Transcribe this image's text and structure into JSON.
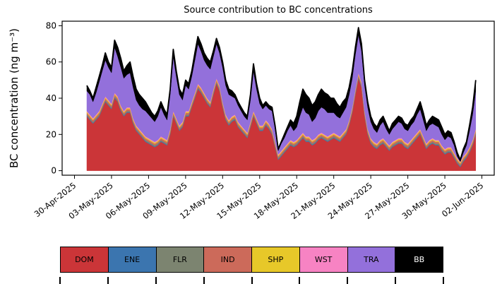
{
  "chart_data": {
    "type": "area",
    "stacked": true,
    "title": "Source contribution to BC concentrations",
    "ylabel": "BC concentration (ng m⁻³)",
    "xlabel": "",
    "ylim": [
      0,
      80
    ],
    "yticks": [
      0,
      20,
      40,
      60,
      80
    ],
    "grid": false,
    "x_axis": {
      "unit": "days since 30-Apr-2025",
      "domain": [
        -1,
        34
      ],
      "ticks": [
        {
          "offset": 0,
          "label": "30-Apr-2025"
        },
        {
          "offset": 3,
          "label": "03-May-2025"
        },
        {
          "offset": 6,
          "label": "06-May-2025"
        },
        {
          "offset": 9,
          "label": "09-May-2025"
        },
        {
          "offset": 12,
          "label": "12-May-2025"
        },
        {
          "offset": 15,
          "label": "15-May-2025"
        },
        {
          "offset": 18,
          "label": "18-May-2025"
        },
        {
          "offset": 21,
          "label": "21-May-2025"
        },
        {
          "offset": 24,
          "label": "24-May-2025"
        },
        {
          "offset": 27,
          "label": "27-May-2025"
        },
        {
          "offset": 30,
          "label": "30-May-2025"
        },
        {
          "offset": 33,
          "label": "02-Jun-2025"
        }
      ]
    },
    "x_start": 1.0,
    "x_step": 0.25,
    "n_points": 127,
    "series": [
      {
        "name": "DOM",
        "color": "#cb3538",
        "values": [
          30,
          28,
          26,
          28,
          30,
          34,
          38,
          36,
          34,
          40,
          38,
          33,
          30,
          32,
          32,
          26,
          22,
          20,
          18,
          16,
          15,
          14,
          13,
          14,
          16,
          15,
          14,
          20,
          30,
          26,
          22,
          24,
          30,
          30,
          35,
          40,
          45,
          43,
          40,
          37,
          35,
          42,
          48,
          44,
          35,
          28,
          25,
          27,
          28,
          24,
          22,
          20,
          18,
          24,
          30,
          26,
          22,
          22,
          25,
          23,
          20,
          13,
          6,
          8,
          10,
          12,
          14,
          13,
          14,
          16,
          18,
          16,
          16,
          14,
          15,
          17,
          18,
          17,
          16,
          17,
          18,
          17,
          16,
          18,
          20,
          25,
          32,
          42,
          51,
          46,
          30,
          20,
          15,
          13,
          12,
          14,
          15,
          13,
          11,
          13,
          14,
          15,
          15,
          13,
          12,
          14,
          16,
          18,
          20,
          16,
          12,
          14,
          15,
          14,
          14,
          11,
          9,
          10,
          10,
          7,
          4,
          2,
          5,
          7,
          10,
          14,
          20
        ]
      },
      {
        "name": "ENE",
        "color": "#3b75af",
        "constant": 0.4
      },
      {
        "name": "FLR",
        "color": "#7c8470",
        "constant": 0.6
      },
      {
        "name": "IND",
        "color": "#cc6a5a",
        "constant": 0.9
      },
      {
        "name": "SHP",
        "color": "#e7c829",
        "constant": 0.6
      },
      {
        "name": "WST",
        "color": "#f783c3",
        "constant": 0.5
      },
      {
        "name": "TRA",
        "color": "#9370db",
        "values": [
          11,
          11,
          9,
          12,
          16,
          18,
          20,
          18,
          17,
          25,
          22,
          21,
          18,
          18,
          19,
          17,
          14,
          13,
          13,
          14,
          13,
          12,
          11,
          13,
          16,
          13,
          11,
          19,
          30,
          23,
          17,
          12,
          14,
          12,
          14,
          18,
          22,
          20,
          18,
          18,
          18,
          18,
          19,
          18,
          19,
          16,
          14,
          11,
          9,
          9,
          8,
          7,
          7,
          12,
          22,
          16,
          12,
          9,
          8,
          8,
          10,
          7,
          2,
          4,
          5,
          7,
          8,
          6,
          7,
          11,
          14,
          13,
          12,
          10,
          11,
          13,
          14,
          14,
          13,
          12,
          11,
          10,
          10,
          11,
          12,
          14,
          16,
          19,
          21,
          17,
          14,
          12,
          9,
          7,
          6,
          8,
          9,
          7,
          6,
          7,
          8,
          9,
          8,
          7,
          7,
          8,
          8,
          10,
          11,
          9,
          7,
          8,
          8,
          8,
          7,
          6,
          5,
          6,
          5,
          4,
          1,
          0,
          2,
          4,
          9,
          14,
          21
        ]
      },
      {
        "name": "BB",
        "color": "#000000",
        "values": [
          3,
          2,
          2,
          3,
          3,
          3,
          4,
          3,
          3,
          4,
          5,
          5,
          4,
          5,
          6,
          6,
          6,
          6,
          6,
          5,
          4,
          3,
          3,
          3,
          3,
          3,
          3,
          3,
          4,
          3,
          3,
          3,
          3,
          3,
          3,
          4,
          4,
          4,
          4,
          4,
          4,
          3,
          3,
          3,
          3,
          3,
          3,
          3,
          2,
          2,
          2,
          2,
          2,
          3,
          4,
          3,
          3,
          2,
          2,
          2,
          2,
          2,
          1,
          1,
          2,
          2,
          3,
          4,
          6,
          8,
          10,
          10,
          9,
          9,
          9,
          9,
          10,
          9,
          10,
          8,
          8,
          7,
          6,
          6,
          5,
          4,
          4,
          4,
          4,
          4,
          3,
          3,
          3,
          3,
          3,
          3,
          3,
          3,
          2,
          3,
          3,
          3,
          3,
          3,
          3,
          3,
          3,
          3,
          4,
          4,
          3,
          3,
          4,
          4,
          4,
          4,
          3,
          3,
          3,
          2,
          2,
          1,
          2,
          2,
          3,
          4,
          6
        ]
      }
    ],
    "legend": {
      "position": "bottom",
      "labels": [
        "DOM",
        "ENE",
        "FLR",
        "IND",
        "SHP",
        "WST",
        "TRA",
        "BB"
      ]
    }
  }
}
